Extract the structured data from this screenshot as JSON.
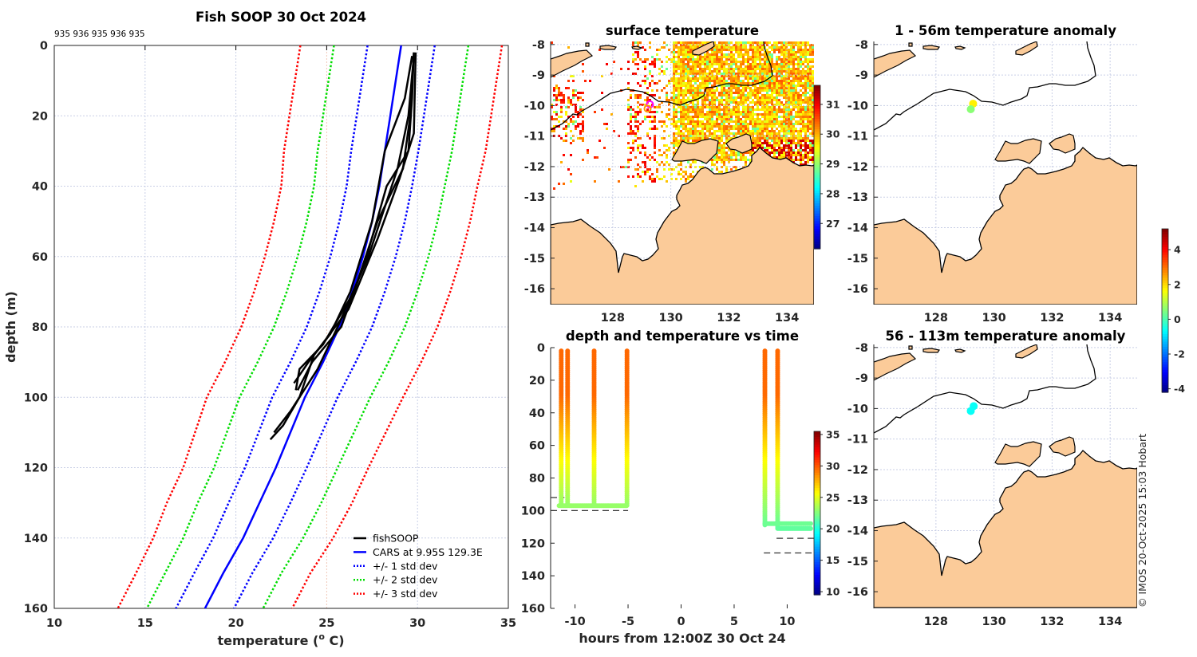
{
  "figure": {
    "copyright": "© IMOS 20-Oct-2025 15:03 Hobart"
  },
  "chart_data": [
    {
      "type": "line",
      "title": "Fish SOOP 30 Oct 2024",
      "annotation": "935 936 935 936 935",
      "xlabel": "temperature (",
      "xlabel_sup": "o",
      "xlabel_end": " C)",
      "ylabel": "depth (m)",
      "xlim": [
        10,
        35
      ],
      "ylim": [
        160,
        0
      ],
      "xticks": [
        10,
        15,
        20,
        25,
        30,
        35
      ],
      "yticks": [
        0,
        20,
        40,
        60,
        80,
        100,
        120,
        140,
        160
      ],
      "grid": true,
      "legend_position": "bottom-right",
      "legend": [
        "fishSOOP",
        "CARS at 9.95S 129.3E",
        "+/- 1 std dev",
        "+/- 2 std dev",
        "+/- 3 std dev"
      ],
      "colors": {
        "fishSOOP": "#000000",
        "cars": "#0000ff",
        "sd1": "#0000ff",
        "sd2": "#00dd00",
        "sd3": "#ff0000"
      },
      "cars": {
        "depth": [
          0,
          10,
          20,
          30,
          40,
          50,
          60,
          70,
          80,
          90,
          100,
          110,
          120,
          130,
          140,
          150,
          160
        ],
        "mean": [
          29.1,
          28.8,
          28.5,
          28.2,
          27.9,
          27.5,
          27.0,
          26.4,
          25.7,
          24.8,
          23.8,
          23.0,
          22.2,
          21.3,
          20.4,
          19.3,
          18.3
        ],
        "std": [
          1.85,
          1.85,
          1.85,
          1.85,
          1.8,
          1.8,
          1.8,
          1.8,
          1.8,
          1.8,
          1.8,
          1.75,
          1.7,
          1.7,
          1.65,
          1.6,
          1.6
        ]
      },
      "profiles": [
        [
          [
            2,
            29.8
          ],
          [
            15,
            29.7
          ],
          [
            30,
            29.5
          ],
          [
            40,
            28.3
          ],
          [
            60,
            27.2
          ],
          [
            80,
            25.8
          ],
          [
            90,
            24.2
          ],
          [
            98,
            23.4
          ]
        ],
        [
          [
            2,
            29.8
          ],
          [
            20,
            29.6
          ],
          [
            35,
            29.2
          ],
          [
            50,
            27.8
          ],
          [
            70,
            26.5
          ],
          [
            85,
            24.8
          ],
          [
            92,
            23.5
          ],
          [
            98,
            23.3
          ]
        ],
        [
          [
            3,
            29.7
          ],
          [
            15,
            29.3
          ],
          [
            30,
            28.2
          ],
          [
            50,
            27.5
          ],
          [
            70,
            26.3
          ],
          [
            82,
            25.2
          ],
          [
            90,
            24.0
          ],
          [
            96,
            23.2
          ]
        ],
        [
          [
            2,
            29.9
          ],
          [
            25,
            29.8
          ],
          [
            38,
            29.0
          ],
          [
            55,
            27.8
          ],
          [
            75,
            26.2
          ],
          [
            88,
            24.3
          ],
          [
            100,
            23.5
          ],
          [
            108,
            22.6
          ],
          [
            112,
            21.9
          ]
        ],
        [
          [
            3,
            29.8
          ],
          [
            20,
            29.5
          ],
          [
            35,
            28.9
          ],
          [
            60,
            27.3
          ],
          [
            80,
            25.6
          ],
          [
            92,
            24.5
          ],
          [
            104,
            23.0
          ],
          [
            110,
            22.1
          ]
        ]
      ]
    },
    {
      "type": "heatmap",
      "title": "surface temperature",
      "lon_ticks": [
        128,
        130,
        132,
        134
      ],
      "lat_ticks": [
        -8,
        -9,
        -10,
        -11,
        -12,
        -13,
        -14,
        -15,
        -16
      ],
      "lon_range": [
        125.86,
        134.93
      ],
      "lat_range": [
        -7.9,
        -16.52
      ],
      "colorbar": {
        "range": [
          26.15,
          31.64
        ],
        "ticks": [
          27,
          28,
          29,
          30,
          31
        ]
      },
      "markers": [
        {
          "lon": 129.28,
          "lat": -9.96,
          "color": "#ff00ff"
        },
        {
          "lon": 129.2,
          "lat": -10.1,
          "color": "#ff9900"
        }
      ]
    },
    {
      "type": "heatmap",
      "title": "1 - 56m temperature anomaly",
      "lon_ticks": [
        128,
        130,
        132,
        134
      ],
      "lat_ticks": [
        -8,
        -9,
        -10,
        -11,
        -12,
        -13,
        -14,
        -15,
        -16
      ],
      "points": [
        {
          "lon": 129.28,
          "lat": -9.94,
          "value": 1.8
        },
        {
          "lon": 129.2,
          "lat": -10.12,
          "value": 0.6
        }
      ],
      "colorbar": {
        "range": [
          -4.2,
          5.2
        ],
        "ticks": [
          4,
          2,
          0,
          -2,
          -4
        ]
      }
    },
    {
      "type": "heatmap",
      "title": "56 - 113m temperature anomaly",
      "lon_ticks": [
        128,
        130,
        132,
        134
      ],
      "lat_ticks": [
        -8,
        -9,
        -10,
        -11,
        -12,
        -13,
        -14,
        -15,
        -16
      ],
      "points": [
        {
          "lon": 129.3,
          "lat": -9.92,
          "value": -0.6
        },
        {
          "lon": 129.2,
          "lat": -10.08,
          "value": -0.6
        }
      ]
    },
    {
      "type": "scatter",
      "title": "depth and temperature vs time",
      "xlabel": "hours from 12:00Z 30 Oct 24",
      "xlim": [
        -12.3,
        12.6
      ],
      "ylim": [
        160,
        0
      ],
      "xticks": [
        -10,
        -5,
        0,
        5,
        10
      ],
      "yticks": [
        0,
        20,
        40,
        60,
        80,
        100,
        120,
        140,
        160
      ],
      "casts": [
        {
          "t": -11.3,
          "bottom": 97
        },
        {
          "t": -10.7,
          "bottom": 97
        },
        {
          "t": -8.2,
          "bottom": 97
        },
        {
          "t": -5.1,
          "bottom": 97
        },
        {
          "t": 7.9,
          "bottom": 109
        },
        {
          "t": 9.1,
          "bottom": 111
        }
      ],
      "bottom_tracks": [
        {
          "t0": -11.5,
          "t1": -5.1,
          "depth": 97
        },
        {
          "t0": 7.9,
          "t1": 12.3,
          "depth": 108
        },
        {
          "t0": 9.1,
          "t1": 12.3,
          "depth": 111
        }
      ],
      "dashed_depths": [
        {
          "t0": -12.3,
          "t1": -11.0,
          "depth": 92
        },
        {
          "t0": -12.3,
          "t1": -5.0,
          "depth": 100
        },
        {
          "t0": 9.0,
          "t1": 12.6,
          "depth": 117
        },
        {
          "t0": 7.8,
          "t1": 12.6,
          "depth": 126
        }
      ],
      "colorbar": {
        "range": [
          9.5,
          35.5
        ],
        "ticks": [
          35,
          30,
          25,
          20,
          15,
          10
        ]
      }
    }
  ]
}
